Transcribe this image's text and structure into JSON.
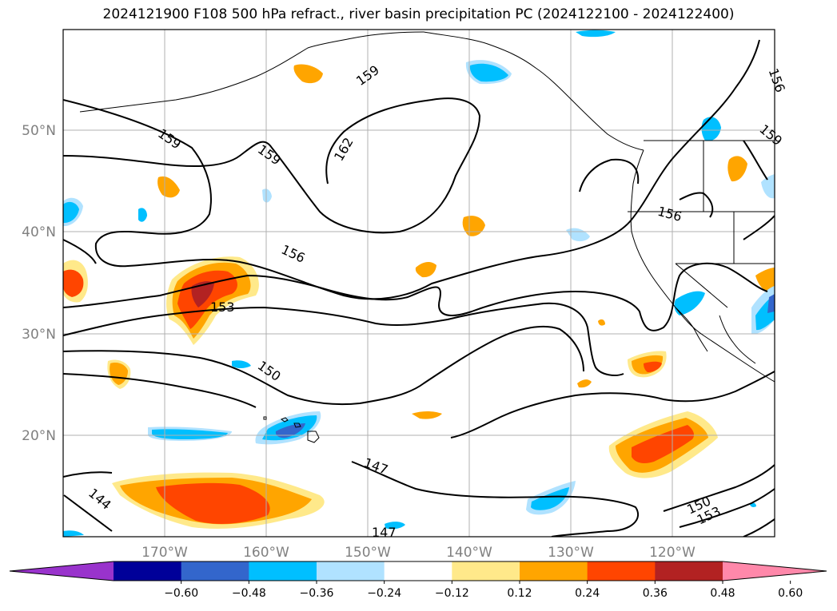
{
  "title": "2024121900 F108 500 hPa refract., river basin precipitation PC (2024122100 - 2024122400)",
  "lat_labels": [
    "50°N",
    "40°N",
    "30°N",
    "20°N"
  ],
  "lon_labels": [
    "170°W",
    "160°W",
    "150°W",
    "140°W",
    "130°W",
    "120°W"
  ],
  "contour_labels": [
    "159",
    "162",
    "159",
    "159",
    "156",
    "156",
    "153",
    "150",
    "147",
    "144",
    "147",
    "150",
    "153",
    "156",
    "159"
  ],
  "colorbar": {
    "ticks": [
      "−0.60",
      "−0.48",
      "−0.36",
      "−0.24",
      "−0.12",
      "0.12",
      "0.24",
      "0.36",
      "0.48",
      "0.60"
    ],
    "colors": [
      "#9933cc",
      "#000099",
      "#3366cc",
      "#00bfff",
      "#b0e2ff",
      "#ffffff",
      "#ffe98a",
      "#ffa500",
      "#ff4500",
      "#b22222",
      "#ff88aa"
    ]
  }
}
